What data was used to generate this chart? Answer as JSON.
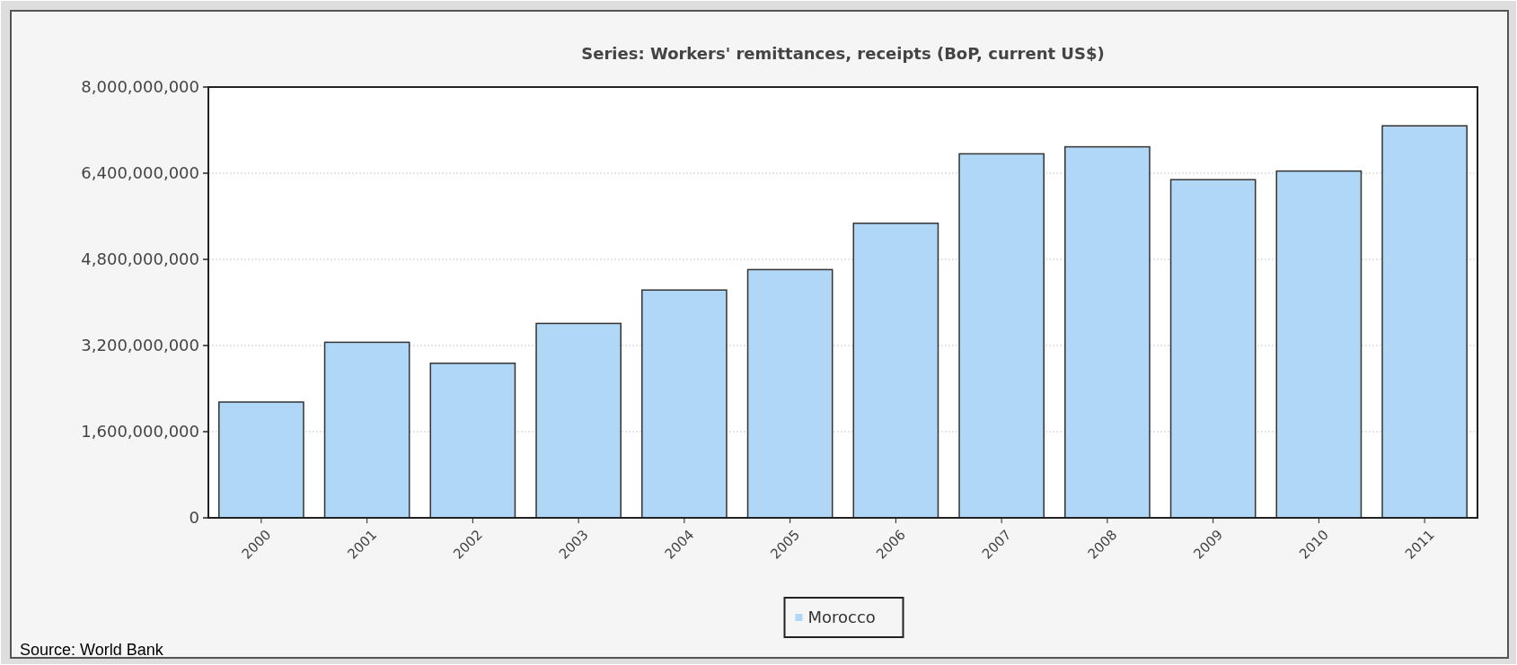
{
  "chart_data": {
    "type": "bar",
    "title": "Series: Workers' remittances, receipts (BoP, current US$)",
    "categories": [
      "2000",
      "2001",
      "2002",
      "2003",
      "2004",
      "2005",
      "2006",
      "2007",
      "2008",
      "2009",
      "2010",
      "2011"
    ],
    "series": [
      {
        "name": "Morocco",
        "color": "#b0d8f6",
        "values": [
          2150000000,
          3260000000,
          2870000000,
          3610000000,
          4230000000,
          4610000000,
          5470000000,
          6760000000,
          6890000000,
          6280000000,
          6440000000,
          7280000000
        ]
      }
    ],
    "ylim": [
      0,
      8000000000
    ],
    "yticks": [
      0,
      {
        "value": 1600000000,
        "label": "1,600,000,000"
      },
      {
        "value": 3200000000,
        "label": "3,200,000,000"
      },
      {
        "value": 4800000000,
        "label": "4,800,000,000"
      },
      {
        "value": 6400000000,
        "label": "6,400,000,000"
      },
      {
        "value": 8000000000,
        "label": "8,000,000,000"
      }
    ],
    "grid": "y",
    "legend": "bottom",
    "annotations": [
      "Source: World Bank"
    ]
  }
}
